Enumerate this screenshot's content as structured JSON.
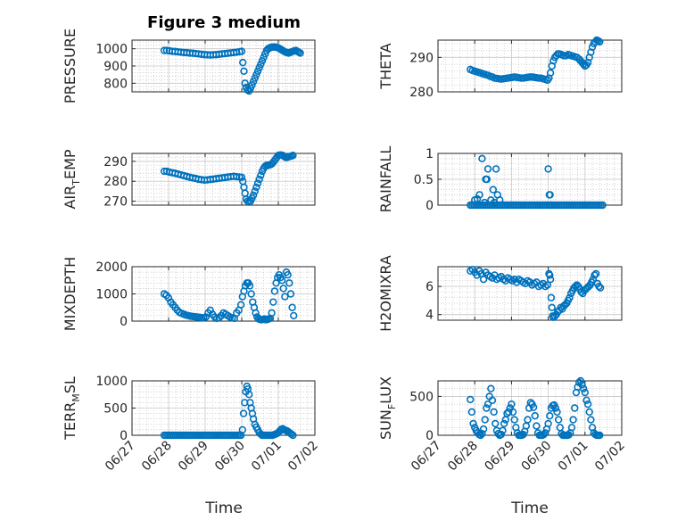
{
  "figure": {
    "title": "Figure 3 medium"
  },
  "colors": {
    "marker": "#0072BD",
    "grid": "#b8b8b8",
    "axis": "#262626"
  },
  "chart_data": [
    {
      "type": "scatter",
      "ylabel": "PRESSURE",
      "ylim": [
        750,
        1050
      ],
      "yticks": [
        800,
        900,
        1000
      ],
      "ytick_labels": [
        "800",
        "900",
        "1000"
      ],
      "grid": true,
      "xlim": [
        0,
        5
      ],
      "x": [
        0.88,
        0.95,
        1.02,
        1.1,
        1.18,
        1.26,
        1.34,
        1.42,
        1.5,
        1.58,
        1.66,
        1.74,
        1.82,
        1.9,
        1.98,
        2.06,
        2.14,
        2.22,
        2.3,
        2.38,
        2.46,
        2.54,
        2.62,
        2.7,
        2.78,
        2.86,
        2.94,
        3.0,
        3.03,
        3.06,
        3.09,
        3.12,
        3.16,
        3.2,
        3.24,
        3.28,
        3.32,
        3.36,
        3.4,
        3.44,
        3.48,
        3.52,
        3.56,
        3.6,
        3.64,
        3.68,
        3.72,
        3.76,
        3.8,
        3.84,
        3.88,
        3.92,
        3.96,
        4.0,
        4.04,
        4.08,
        4.12,
        4.16,
        4.2,
        4.24,
        4.28,
        4.32,
        4.36,
        4.4,
        4.44,
        4.48,
        4.52,
        4.56,
        4.6
      ],
      "y": [
        990,
        990,
        988,
        985,
        984,
        982,
        980,
        978,
        977,
        975,
        974,
        972,
        970,
        968,
        966,
        965,
        964,
        965,
        966,
        968,
        970,
        972,
        974,
        976,
        978,
        980,
        983,
        985,
        920,
        870,
        800,
        775,
        760,
        755,
        770,
        790,
        810,
        830,
        850,
        870,
        890,
        910,
        930,
        950,
        970,
        990,
        1000,
        1005,
        1008,
        1010,
        1010,
        1010,
        1008,
        1005,
        1000,
        995,
        990,
        985,
        980,
        978,
        975,
        978,
        982,
        985,
        988,
        990,
        985,
        980,
        975
      ]
    },
    {
      "type": "scatter",
      "ylabel": "THETA",
      "ylim": [
        280,
        295
      ],
      "yticks": [
        280,
        290
      ],
      "ytick_labels": [
        "280",
        "290"
      ],
      "grid": true,
      "xlim": [
        0,
        5
      ],
      "x": [
        0.88,
        0.94,
        1.0,
        1.06,
        1.12,
        1.18,
        1.24,
        1.3,
        1.36,
        1.42,
        1.48,
        1.54,
        1.6,
        1.66,
        1.72,
        1.78,
        1.84,
        1.9,
        1.96,
        2.02,
        2.08,
        2.14,
        2.2,
        2.26,
        2.32,
        2.38,
        2.44,
        2.5,
        2.56,
        2.62,
        2.68,
        2.74,
        2.8,
        2.86,
        2.92,
        2.98,
        3.02,
        3.06,
        3.1,
        3.14,
        3.18,
        3.22,
        3.26,
        3.3,
        3.36,
        3.42,
        3.48,
        3.54,
        3.6,
        3.66,
        3.72,
        3.78,
        3.84,
        3.88,
        3.92,
        3.96,
        4.0,
        4.04,
        4.08,
        4.12,
        4.16,
        4.2,
        4.24,
        4.28,
        4.32,
        4.36,
        4.4
      ],
      "y": [
        286.5,
        286.2,
        286,
        285.8,
        285.6,
        285.4,
        285.2,
        285,
        284.8,
        284.5,
        284.3,
        284,
        283.9,
        283.8,
        283.7,
        283.8,
        283.9,
        284,
        284.1,
        284.2,
        284.3,
        284.2,
        284.1,
        284,
        284,
        284.1,
        284.2,
        284.3,
        284.3,
        284.2,
        284.1,
        284,
        284,
        283.8,
        283.6,
        283.4,
        284,
        285.5,
        287.5,
        289,
        290,
        290.5,
        291,
        291,
        290.8,
        290.5,
        290.5,
        290.8,
        290.6,
        290.4,
        290.2,
        290,
        289.5,
        289,
        288.5,
        288,
        287.5,
        287.8,
        288.5,
        290,
        291.5,
        293,
        294,
        294.5,
        295,
        294.8,
        294.5
      ]
    },
    {
      "type": "scatter",
      "ylabel": "AIR_TEMP",
      "ylim": [
        268,
        294
      ],
      "yticks": [
        270,
        280,
        290
      ],
      "ytick_labels": [
        "270",
        "280",
        "290"
      ],
      "grid": true,
      "xlim": [
        0,
        5
      ],
      "x": [
        0.88,
        0.95,
        1.02,
        1.1,
        1.18,
        1.26,
        1.34,
        1.42,
        1.5,
        1.58,
        1.66,
        1.74,
        1.82,
        1.9,
        1.98,
        2.06,
        2.14,
        2.22,
        2.3,
        2.38,
        2.46,
        2.54,
        2.62,
        2.7,
        2.78,
        2.86,
        2.94,
        3.0,
        3.03,
        3.06,
        3.09,
        3.12,
        3.16,
        3.2,
        3.24,
        3.28,
        3.32,
        3.36,
        3.4,
        3.44,
        3.48,
        3.52,
        3.56,
        3.6,
        3.64,
        3.68,
        3.72,
        3.76,
        3.8,
        3.84,
        3.88,
        3.92,
        3.96,
        4.0,
        4.04,
        4.08,
        4.12,
        4.16,
        4.2,
        4.24,
        4.28,
        4.32,
        4.36,
        4.4
      ],
      "y": [
        285,
        285,
        284.6,
        284.3,
        284,
        283.6,
        283.2,
        282.8,
        282.4,
        282,
        281.7,
        281.4,
        281,
        280.8,
        280.6,
        280.7,
        280.9,
        281.1,
        281.3,
        281.5,
        281.7,
        281.9,
        282.1,
        282.3,
        282.5,
        282.3,
        282.1,
        282,
        280,
        277,
        274,
        271,
        270,
        269.5,
        270,
        271.5,
        273,
        275,
        277,
        279,
        281,
        283,
        285,
        286.5,
        287.5,
        288,
        288,
        288.2,
        288.5,
        289,
        290,
        291,
        292,
        293,
        293.2,
        293.2,
        293,
        292.5,
        292,
        292,
        292.3,
        292.5,
        292.7,
        293
      ]
    },
    {
      "type": "scatter",
      "ylabel": "RAINFALL",
      "ylim": [
        0,
        1
      ],
      "yticks": [
        0,
        0.5,
        1
      ],
      "ytick_labels": [
        "0",
        "0.5",
        "1"
      ],
      "grid": true,
      "xlim": [
        0,
        5
      ],
      "x": [
        0.88,
        0.93,
        0.98,
        1.03,
        1.08,
        1.13,
        1.18,
        1.23,
        1.28,
        1.33,
        1.38,
        1.43,
        1.48,
        1.53,
        1.58,
        1.63,
        1.68,
        1.73,
        1.78,
        1.83,
        1.88,
        1.93,
        1.98,
        2.03,
        2.08,
        2.13,
        2.18,
        2.23,
        2.28,
        2.33,
        2.38,
        2.43,
        2.48,
        2.53,
        2.58,
        2.63,
        2.68,
        2.73,
        2.78,
        2.83,
        2.88,
        2.93,
        2.98,
        3.03,
        3.08,
        3.13,
        3.18,
        3.23,
        3.28,
        3.33,
        3.38,
        3.43,
        3.48,
        3.53,
        3.58,
        3.63,
        3.68,
        3.73,
        3.78,
        3.83,
        3.88,
        3.93,
        3.98,
        4.03,
        4.08,
        4.13,
        4.18,
        4.23,
        4.28,
        4.33,
        4.38,
        4.43,
        4.48,
        1.0,
        1.07,
        1.13,
        1.2,
        1.27,
        1.3,
        1.33,
        1.36,
        1.44,
        1.5,
        1.53,
        1.58,
        1.62,
        1.68,
        3.0,
        3.03,
        3.05,
        3.07
      ],
      "y": [
        0,
        0,
        0,
        0,
        0,
        0,
        0,
        0,
        0,
        0,
        0,
        0,
        0,
        0,
        0,
        0,
        0,
        0,
        0,
        0,
        0,
        0,
        0,
        0,
        0,
        0,
        0,
        0,
        0,
        0,
        0,
        0,
        0,
        0,
        0,
        0,
        0,
        0,
        0,
        0,
        0,
        0,
        0,
        0,
        0,
        0,
        0,
        0,
        0,
        0,
        0,
        0,
        0,
        0,
        0,
        0,
        0,
        0,
        0,
        0,
        0,
        0,
        0,
        0,
        0,
        0,
        0,
        0,
        0,
        0,
        0,
        0,
        0,
        0.1,
        0.12,
        0.2,
        0.9,
        0.05,
        0.5,
        0.5,
        0.7,
        0.1,
        0.3,
        0.05,
        0.7,
        0.2,
        0.1,
        0.7,
        0.2,
        0.2,
        0
      ]
    },
    {
      "type": "scatter",
      "ylabel": "MIXDEPTH",
      "ylim": [
        0,
        2000
      ],
      "yticks": [
        0,
        1000,
        2000
      ],
      "ytick_labels": [
        "0",
        "1000",
        "2000"
      ],
      "grid": true,
      "xlim": [
        0,
        5
      ],
      "x": [
        0.88,
        0.94,
        1.0,
        1.06,
        1.12,
        1.18,
        1.24,
        1.3,
        1.36,
        1.42,
        1.48,
        1.54,
        1.6,
        1.66,
        1.72,
        1.78,
        1.84,
        1.9,
        1.96,
        2.02,
        2.08,
        2.14,
        2.2,
        2.26,
        2.32,
        2.38,
        2.44,
        2.5,
        2.56,
        2.62,
        2.68,
        2.74,
        2.8,
        2.86,
        2.92,
        2.98,
        3.02,
        3.06,
        3.1,
        3.14,
        3.18,
        3.22,
        3.26,
        3.3,
        3.34,
        3.38,
        3.42,
        3.46,
        3.5,
        3.54,
        3.58,
        3.62,
        3.66,
        3.7,
        3.74,
        3.78,
        3.82,
        3.86,
        3.9,
        3.94,
        3.98,
        4.02,
        4.06,
        4.1,
        4.14,
        4.18,
        4.22,
        4.26,
        4.3,
        4.34,
        4.38,
        4.42
      ],
      "y": [
        1000,
        950,
        850,
        700,
        600,
        500,
        400,
        320,
        280,
        250,
        220,
        200,
        180,
        170,
        160,
        150,
        140,
        130,
        120,
        150,
        300,
        400,
        250,
        150,
        100,
        120,
        200,
        300,
        250,
        200,
        150,
        120,
        100,
        300,
        400,
        600,
        900,
        1100,
        1300,
        1400,
        1400,
        1300,
        1000,
        700,
        500,
        300,
        150,
        80,
        60,
        50,
        60,
        80,
        50,
        60,
        80,
        100,
        300,
        700,
        1100,
        1400,
        1600,
        1700,
        1600,
        1500,
        1200,
        900,
        1800,
        1700,
        1400,
        1000,
        500,
        200
      ]
    },
    {
      "type": "scatter",
      "ylabel": "H2OMIXRA",
      "ylim": [
        3.6,
        7.4
      ],
      "yticks": [
        4,
        6
      ],
      "ytick_labels": [
        "4",
        "6"
      ],
      "grid": true,
      "xlim": [
        0,
        5
      ],
      "x": [
        0.88,
        0.94,
        1.0,
        1.06,
        1.12,
        1.18,
        1.24,
        1.3,
        1.36,
        1.42,
        1.48,
        1.54,
        1.6,
        1.66,
        1.72,
        1.78,
        1.84,
        1.9,
        1.96,
        2.02,
        2.08,
        2.14,
        2.2,
        2.26,
        2.32,
        2.38,
        2.44,
        2.5,
        2.56,
        2.62,
        2.68,
        2.74,
        2.8,
        2.86,
        2.92,
        2.98,
        3.02,
        3.04,
        3.06,
        3.08,
        3.1,
        3.12,
        3.14,
        3.18,
        3.22,
        3.26,
        3.3,
        3.34,
        3.38,
        3.42,
        3.46,
        3.5,
        3.54,
        3.58,
        3.62,
        3.66,
        3.7,
        3.74,
        3.78,
        3.82,
        3.86,
        3.9,
        3.94,
        3.98,
        4.02,
        4.06,
        4.1,
        4.14,
        4.18,
        4.22,
        4.26,
        4.3,
        4.34,
        4.38,
        4.42
      ],
      "y": [
        7.1,
        7.2,
        7.0,
        6.8,
        7.1,
        6.9,
        6.5,
        7.0,
        6.8,
        6.7,
        6.6,
        6.8,
        6.5,
        6.6,
        6.7,
        6.5,
        6.4,
        6.6,
        6.5,
        6.4,
        6.5,
        6.3,
        6.5,
        6.4,
        6.3,
        6.2,
        6.4,
        6.3,
        6.1,
        6.2,
        6.3,
        6.0,
        6.1,
        6.2,
        6.0,
        6.1,
        6.9,
        6.8,
        6.5,
        5.2,
        4.5,
        3.9,
        3.8,
        3.9,
        4.0,
        4.2,
        4.3,
        4.5,
        4.4,
        4.6,
        4.7,
        4.8,
        5.0,
        5.2,
        5.5,
        5.7,
        5.9,
        6.0,
        6.1,
        6.0,
        5.8,
        5.6,
        5.5,
        5.7,
        5.8,
        5.9,
        6.0,
        6.1,
        6.3,
        6.5,
        6.8,
        6.9,
        6.2,
        6.0,
        5.9
      ]
    },
    {
      "type": "scatter",
      "ylabel": "TERR_MSL",
      "ylim": [
        0,
        1000
      ],
      "yticks": [
        0,
        500,
        1000
      ],
      "ytick_labels": [
        "0",
        "500",
        "1000"
      ],
      "grid": true,
      "xlim": [
        0,
        5
      ],
      "x": [
        0.88,
        0.93,
        0.98,
        1.03,
        1.08,
        1.13,
        1.18,
        1.23,
        1.28,
        1.33,
        1.38,
        1.43,
        1.48,
        1.53,
        1.58,
        1.63,
        1.68,
        1.73,
        1.78,
        1.83,
        1.88,
        1.93,
        1.98,
        2.03,
        2.08,
        2.13,
        2.18,
        2.23,
        2.28,
        2.33,
        2.38,
        2.43,
        2.48,
        2.53,
        2.58,
        2.63,
        2.68,
        2.73,
        2.78,
        2.83,
        2.88,
        2.93,
        2.98,
        3.02,
        3.05,
        3.08,
        3.11,
        3.14,
        3.17,
        3.2,
        3.23,
        3.26,
        3.29,
        3.32,
        3.36,
        3.4,
        3.44,
        3.48,
        3.52,
        3.56,
        3.6,
        3.64,
        3.68,
        3.72,
        3.76,
        3.8,
        3.84,
        3.88,
        3.92,
        3.96,
        4.0,
        4.04,
        4.08,
        4.12,
        4.16,
        4.2,
        4.24,
        4.28,
        4.32,
        4.36,
        4.4
      ],
      "y": [
        0,
        0,
        0,
        0,
        0,
        0,
        0,
        0,
        0,
        0,
        0,
        0,
        0,
        0,
        0,
        0,
        0,
        0,
        0,
        0,
        0,
        0,
        0,
        0,
        0,
        0,
        0,
        0,
        0,
        0,
        0,
        0,
        0,
        0,
        0,
        0,
        0,
        0,
        0,
        0,
        0,
        0,
        0,
        100,
        400,
        600,
        800,
        900,
        850,
        750,
        600,
        500,
        400,
        300,
        200,
        150,
        100,
        50,
        20,
        0,
        0,
        0,
        0,
        0,
        0,
        0,
        0,
        10,
        20,
        30,
        50,
        80,
        110,
        120,
        100,
        90,
        80,
        60,
        40,
        20,
        0
      ]
    },
    {
      "type": "scatter",
      "ylabel": "SUN_FLUX",
      "ylim": [
        0,
        700
      ],
      "yticks": [
        0,
        500
      ],
      "ytick_labels": [
        "0",
        "500"
      ],
      "grid": true,
      "xlim": [
        0,
        5
      ],
      "x": [
        0.88,
        0.92,
        0.96,
        1.0,
        1.04,
        1.08,
        1.12,
        1.16,
        1.2,
        1.24,
        1.28,
        1.32,
        1.36,
        1.4,
        1.44,
        1.48,
        1.52,
        1.56,
        1.6,
        1.64,
        1.68,
        1.72,
        1.76,
        1.8,
        1.84,
        1.88,
        1.92,
        1.96,
        2.0,
        2.04,
        2.08,
        2.12,
        2.16,
        2.2,
        2.24,
        2.28,
        2.32,
        2.36,
        2.4,
        2.44,
        2.48,
        2.52,
        2.56,
        2.6,
        2.64,
        2.68,
        2.72,
        2.76,
        2.8,
        2.84,
        2.88,
        2.92,
        2.96,
        3.0,
        3.04,
        3.08,
        3.12,
        3.16,
        3.2,
        3.24,
        3.28,
        3.32,
        3.36,
        3.4,
        3.44,
        3.48,
        3.52,
        3.56,
        3.6,
        3.64,
        3.68,
        3.72,
        3.76,
        3.8,
        3.84,
        3.88,
        3.92,
        3.96,
        4.0,
        4.04,
        4.08,
        4.12,
        4.16,
        4.2,
        4.24,
        4.28,
        4.32,
        4.36,
        4.4
      ],
      "y": [
        460,
        300,
        150,
        100,
        60,
        30,
        10,
        0,
        20,
        80,
        200,
        350,
        400,
        500,
        600,
        450,
        300,
        150,
        60,
        20,
        0,
        10,
        60,
        150,
        200,
        280,
        300,
        350,
        400,
        300,
        200,
        100,
        30,
        0,
        0,
        0,
        10,
        50,
        120,
        200,
        350,
        420,
        400,
        360,
        250,
        120,
        30,
        0,
        0,
        0,
        10,
        30,
        80,
        150,
        250,
        350,
        380,
        390,
        350,
        300,
        200,
        100,
        20,
        0,
        0,
        0,
        0,
        5,
        30,
        100,
        200,
        350,
        550,
        620,
        680,
        700,
        650,
        600,
        550,
        450,
        400,
        300,
        200,
        100,
        30,
        10,
        0,
        0,
        0
      ]
    }
  ],
  "axes": {
    "xtick_labels": [
      "06/27",
      "06/28",
      "06/29",
      "06/30",
      "07/01",
      "07/02"
    ],
    "xlabel": "Time"
  }
}
